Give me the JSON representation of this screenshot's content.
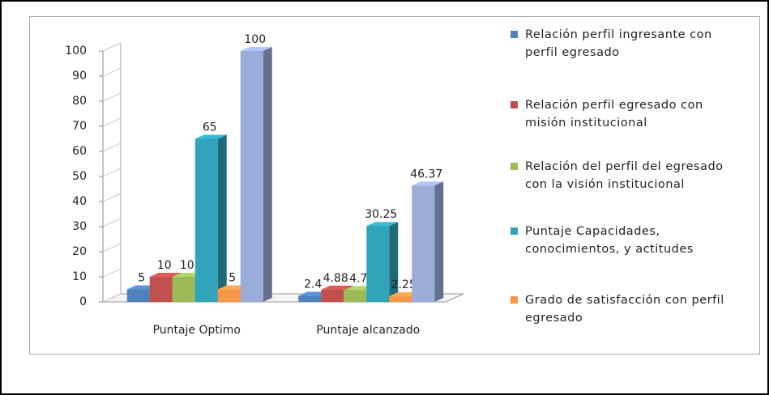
{
  "chart_data": {
    "type": "bar3d",
    "categories": [
      "Puntaje Optimo",
      "Puntaje alcanzado"
    ],
    "series": [
      {
        "name": "Relación perfil ingresante con perfil egresado",
        "color": "#4f81bd",
        "values": [
          5,
          2.4
        ],
        "value_labels": [
          "5",
          "2.4"
        ]
      },
      {
        "name": "Relación perfil egresado con misión institucional",
        "color": "#c0504d",
        "values": [
          10,
          4.88
        ],
        "value_labels": [
          "10",
          "4.88"
        ]
      },
      {
        "name": "Relación del perfil del egresado con la visión institucional",
        "color": "#9bbb59",
        "values": [
          10,
          4.7
        ],
        "value_labels": [
          "10",
          "4.7"
        ]
      },
      {
        "name": "Puntaje Capacidades, conocimientos, y actitudes",
        "color": "#31a3ba",
        "values": [
          65,
          30.25
        ],
        "value_labels": [
          "65",
          "30.25"
        ]
      },
      {
        "name": "Grado de satisfacción con perfil egresado",
        "color": "#f79646",
        "values": [
          5,
          2.25
        ],
        "value_labels": [
          "5",
          "2.25"
        ]
      },
      {
        "color": "#9aadd9",
        "values": [
          100,
          46.37
        ],
        "value_labels": [
          "100",
          "46.37"
        ]
      }
    ],
    "ylim": [
      0,
      100
    ],
    "yticks": [
      0,
      10,
      20,
      30,
      40,
      50,
      60,
      70,
      80,
      90,
      100
    ],
    "grid": false
  }
}
